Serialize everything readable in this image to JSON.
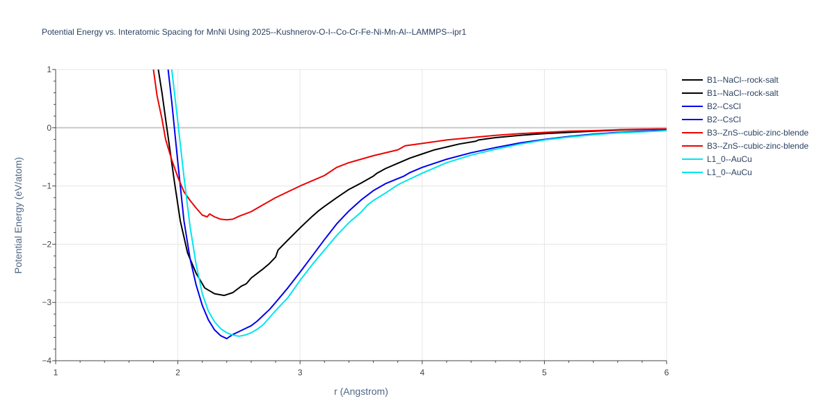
{
  "chart_data": {
    "type": "line",
    "title": "Potential Energy vs. Interatomic Spacing for MnNi Using 2025--Kushnerov-O-I--Co-Cr-Fe-Ni-Mn-Al--LAMMPS--ipr1",
    "xlabel": "r (Angstrom)",
    "ylabel": "Potential Energy (eV/atom)",
    "xlim": [
      1,
      6
    ],
    "ylim": [
      -4,
      1
    ],
    "xticks": [
      "1",
      "2",
      "3",
      "4",
      "5",
      "6"
    ],
    "yticks": [
      "1",
      "0",
      "−1",
      "−2",
      "−3",
      "−4"
    ],
    "grid": true,
    "legend_position": "right",
    "series": [
      {
        "name": "B1--NaCl--rock-salt",
        "color": "#000000",
        "x": [
          1.84,
          1.87,
          1.9,
          1.93,
          1.97,
          2.02,
          2.08,
          2.15,
          2.22,
          2.3,
          2.38,
          2.45,
          2.52,
          2.56,
          2.6,
          2.65,
          2.7,
          2.75,
          2.8,
          2.82,
          2.9,
          3.0,
          3.1,
          3.15,
          3.2,
          3.3,
          3.4,
          3.5,
          3.6,
          3.63,
          3.7,
          3.8,
          3.9,
          4.0,
          4.1,
          4.2,
          4.3,
          4.44,
          4.46,
          4.6,
          4.8,
          5.0,
          5.2,
          5.4,
          5.6,
          5.8,
          6.0
        ],
        "y": [
          1.0,
          0.6,
          0.15,
          -0.3,
          -0.9,
          -1.6,
          -2.15,
          -2.5,
          -2.75,
          -2.85,
          -2.88,
          -2.83,
          -2.72,
          -2.68,
          -2.58,
          -2.5,
          -2.42,
          -2.33,
          -2.22,
          -2.1,
          -1.93,
          -1.72,
          -1.52,
          -1.43,
          -1.35,
          -1.2,
          -1.06,
          -0.95,
          -0.83,
          -0.78,
          -0.7,
          -0.61,
          -0.52,
          -0.45,
          -0.38,
          -0.33,
          -0.28,
          -0.23,
          -0.21,
          -0.17,
          -0.13,
          -0.1,
          -0.08,
          -0.06,
          -0.04,
          -0.03,
          -0.02
        ]
      },
      {
        "name": "B1--NaCl--rock-salt",
        "color": "#000000",
        "x": [],
        "y": []
      },
      {
        "name": "B2--CsCl",
        "color": "#0000ee",
        "x": [
          1.92,
          1.95,
          2.0,
          2.05,
          2.1,
          2.15,
          2.2,
          2.25,
          2.3,
          2.35,
          2.4,
          2.45,
          2.5,
          2.55,
          2.6,
          2.65,
          2.7,
          2.75,
          2.8,
          2.9,
          3.0,
          3.1,
          3.2,
          3.3,
          3.4,
          3.5,
          3.6,
          3.7,
          3.85,
          3.9,
          4.0,
          4.2,
          4.4,
          4.6,
          4.8,
          5.0,
          5.2,
          5.4,
          5.6,
          5.8,
          6.0
        ],
        "y": [
          1.0,
          0.45,
          -0.6,
          -1.6,
          -2.25,
          -2.7,
          -3.05,
          -3.3,
          -3.47,
          -3.57,
          -3.62,
          -3.55,
          -3.5,
          -3.45,
          -3.4,
          -3.32,
          -3.22,
          -3.12,
          -3.0,
          -2.75,
          -2.48,
          -2.2,
          -1.92,
          -1.65,
          -1.43,
          -1.24,
          -1.08,
          -0.96,
          -0.83,
          -0.77,
          -0.68,
          -0.54,
          -0.43,
          -0.34,
          -0.26,
          -0.2,
          -0.15,
          -0.11,
          -0.08,
          -0.06,
          -0.04
        ]
      },
      {
        "name": "B2--CsCl",
        "color": "#0000ee",
        "x": [],
        "y": []
      },
      {
        "name": "B3--ZnS--cubic-zinc-blende",
        "color": "#ee0000",
        "x": [
          1.8,
          1.83,
          1.87,
          1.9,
          1.95,
          2.0,
          2.05,
          2.1,
          2.15,
          2.2,
          2.24,
          2.26,
          2.3,
          2.35,
          2.4,
          2.45,
          2.5,
          2.6,
          2.7,
          2.8,
          3.0,
          3.2,
          3.3,
          3.4,
          3.6,
          3.8,
          3.86,
          4.0,
          4.2,
          4.4,
          4.6,
          4.8,
          5.0,
          5.2,
          5.4,
          5.6,
          5.8,
          6.0
        ],
        "y": [
          1.0,
          0.55,
          0.15,
          -0.2,
          -0.55,
          -0.85,
          -1.1,
          -1.25,
          -1.38,
          -1.5,
          -1.53,
          -1.48,
          -1.53,
          -1.57,
          -1.58,
          -1.57,
          -1.52,
          -1.44,
          -1.32,
          -1.2,
          -1.0,
          -0.82,
          -0.68,
          -0.6,
          -0.48,
          -0.38,
          -0.31,
          -0.27,
          -0.21,
          -0.17,
          -0.13,
          -0.1,
          -0.08,
          -0.06,
          -0.05,
          -0.035,
          -0.025,
          -0.02
        ]
      },
      {
        "name": "B3--ZnS--cubic-zinc-blende",
        "color": "#ee0000",
        "x": [],
        "y": []
      },
      {
        "name": "L1_0--AuCu",
        "color": "#00e5ee",
        "x": [
          1.95,
          2.0,
          2.05,
          2.1,
          2.15,
          2.2,
          2.25,
          2.3,
          2.35,
          2.4,
          2.45,
          2.5,
          2.55,
          2.6,
          2.65,
          2.7,
          2.75,
          2.8,
          2.9,
          3.0,
          3.1,
          3.2,
          3.3,
          3.4,
          3.5,
          3.55,
          3.6,
          3.7,
          3.8,
          3.9,
          4.0,
          4.2,
          4.4,
          4.6,
          4.8,
          5.0,
          5.2,
          5.4,
          5.6,
          5.8,
          6.0
        ],
        "y": [
          1.0,
          0.1,
          -0.85,
          -1.7,
          -2.35,
          -2.85,
          -3.15,
          -3.33,
          -3.45,
          -3.52,
          -3.56,
          -3.58,
          -3.56,
          -3.52,
          -3.46,
          -3.38,
          -3.26,
          -3.14,
          -2.92,
          -2.62,
          -2.35,
          -2.1,
          -1.85,
          -1.63,
          -1.45,
          -1.33,
          -1.25,
          -1.12,
          -0.98,
          -0.88,
          -0.78,
          -0.6,
          -0.47,
          -0.37,
          -0.28,
          -0.21,
          -0.16,
          -0.12,
          -0.09,
          -0.07,
          -0.05
        ]
      },
      {
        "name": "L1_0--AuCu",
        "color": "#00e5ee",
        "x": [],
        "y": []
      }
    ]
  }
}
